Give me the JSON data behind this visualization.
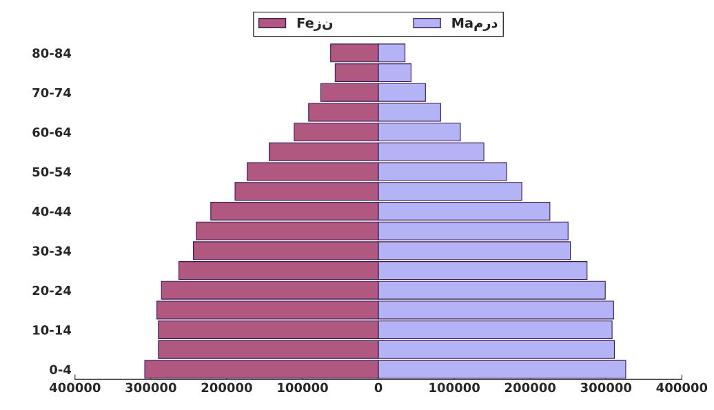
{
  "chart_data": {
    "type": "bar",
    "orientation": "horizontal",
    "stacked": true,
    "categories": [
      "80-84",
      null,
      "70-74",
      null,
      "60-64",
      null,
      "50-54",
      null,
      "40-44",
      null,
      "30-34",
      null,
      "20-24",
      null,
      "10-14",
      null,
      "0-4"
    ],
    "series": [
      {
        "name": "Feزن",
        "color": "#b0587f",
        "values": [
          -63000,
          -57000,
          -76000,
          -92000,
          -111000,
          -144000,
          -173000,
          -189000,
          -221000,
          -240000,
          -244000,
          -263000,
          -286000,
          -292000,
          -290000,
          -290000,
          -308000
        ]
      },
      {
        "name": "Maمرد",
        "color": "#b3b3f5",
        "values": [
          35000,
          43000,
          62000,
          82000,
          108000,
          139000,
          169000,
          189000,
          226000,
          250000,
          253000,
          275000,
          299000,
          310000,
          308000,
          311000,
          326000
        ]
      }
    ],
    "xlim": [
      -400000,
      400000
    ],
    "xticks": [
      {
        "value": -400000,
        "label": "400000"
      },
      {
        "value": -300000,
        "label": "300000"
      },
      {
        "value": -200000,
        "label": "200000"
      },
      {
        "value": -100000,
        "label": "100000"
      },
      0,
      100000,
      200000,
      300000,
      400000
    ],
    "legend": "top",
    "grid": false
  }
}
